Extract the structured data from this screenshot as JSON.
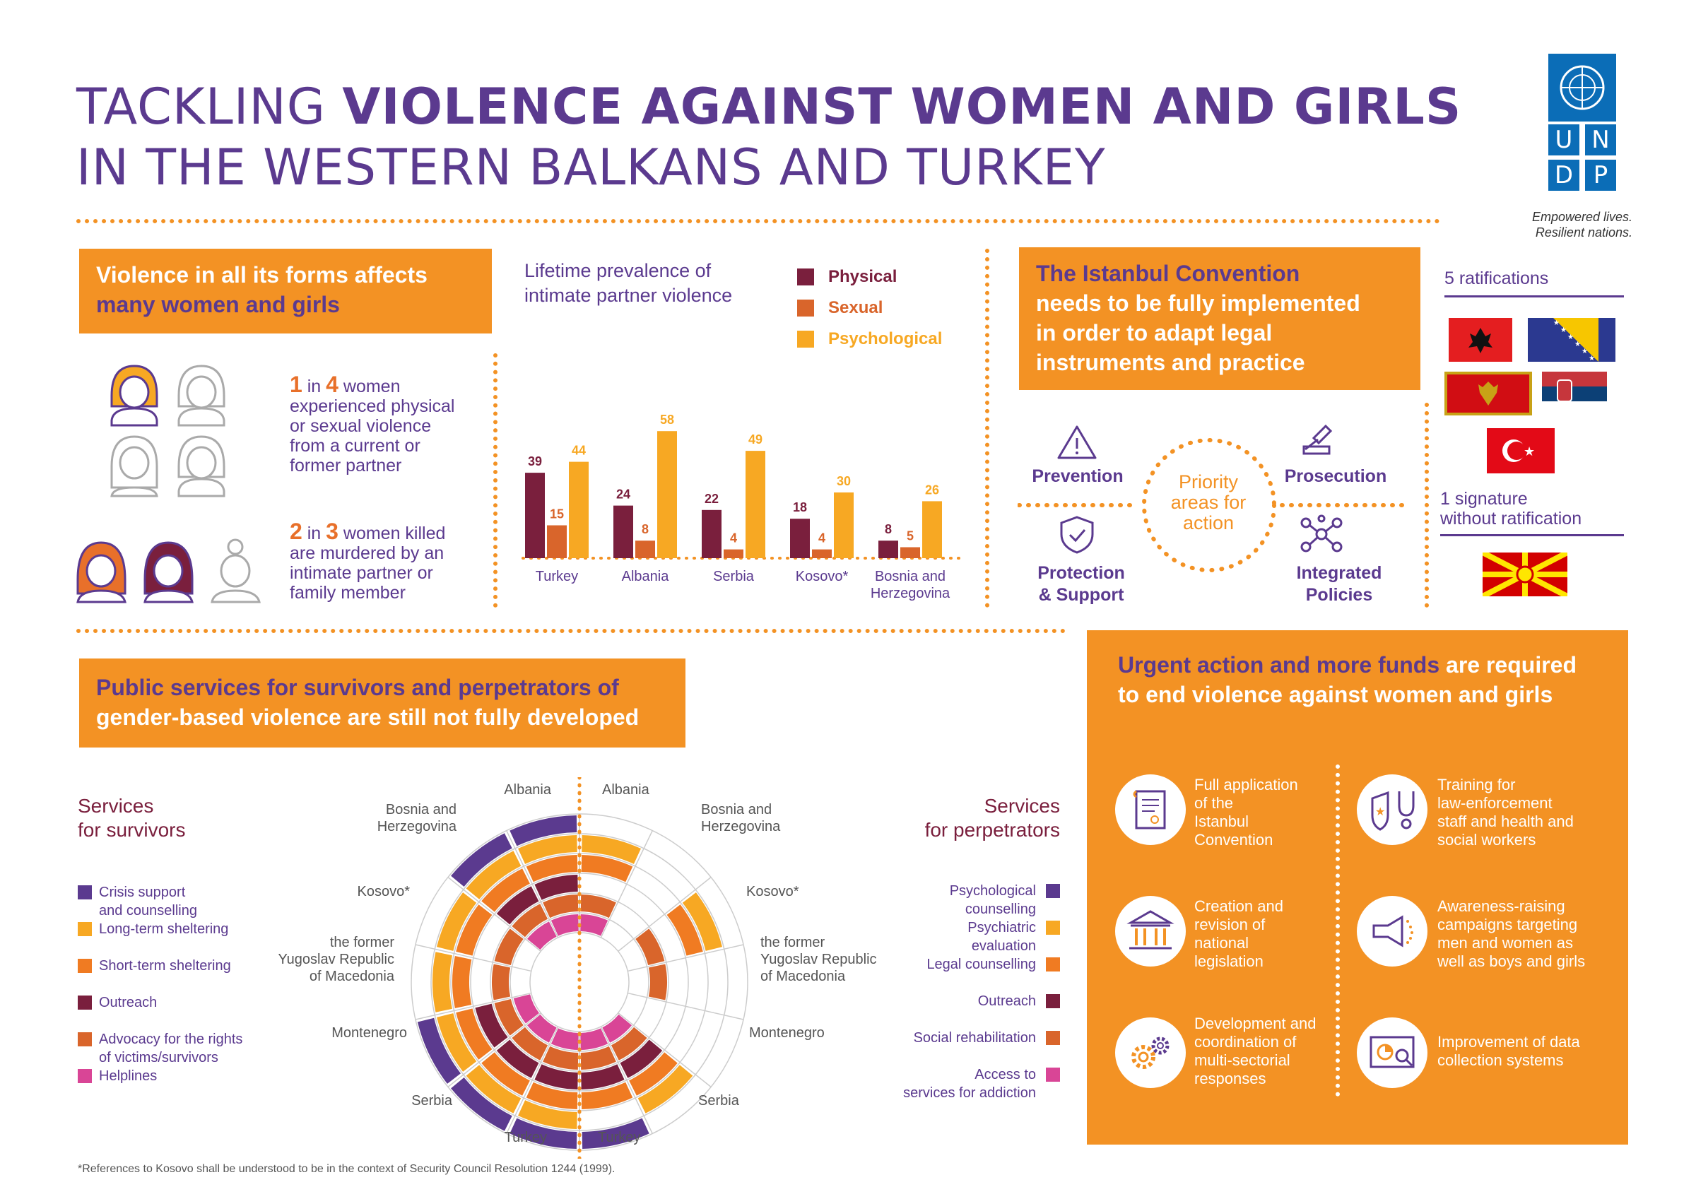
{
  "header": {
    "title_line1_light": "TACKLING ",
    "title_line1_bold": "VIOLENCE AGAINST WOMEN AND GIRLS",
    "title_line2": "IN THE WESTERN BALKANS AND TURKEY"
  },
  "logo": {
    "letters": [
      "U",
      "N",
      "D",
      "P"
    ],
    "tagline_line1": "Empowered lives.",
    "tagline_line2": "Resilient nations."
  },
  "violence_section": {
    "box_line1": "Violence in all its forms affects",
    "box_line2": "many women and girls",
    "stat1_num1": "1",
    "stat1_in": " in ",
    "stat1_num2": "4",
    "stat1_text1": " women",
    "stat1_rest": [
      "experienced physical",
      "or sexual violence",
      "from a current or",
      "former partner"
    ],
    "stat2_num1": "2",
    "stat2_in": " in ",
    "stat2_num2": "3",
    "stat2_text1": " women killed",
    "stat2_rest": [
      "are murdered by an",
      "intimate partner or",
      "family member"
    ]
  },
  "bar_chart_title_line1": "Lifetime prevalence of",
  "bar_chart_title_line2": "intimate partner violence",
  "chart_data": [
    {
      "type": "bar",
      "title": "Lifetime prevalence of intimate partner violence",
      "categories": [
        "Turkey",
        "Albania",
        "Serbia",
        "Kosovo*",
        "Bosnia and Herzegovina"
      ],
      "series": [
        {
          "name": "Physical",
          "color": "#7a1f3d",
          "values": [
            39,
            24,
            22,
            18,
            8
          ]
        },
        {
          "name": "Sexual",
          "color": "#d9652b",
          "values": [
            15,
            8,
            4,
            4,
            5
          ]
        },
        {
          "name": "Psychological",
          "color": "#f7a823",
          "values": [
            44,
            58,
            49,
            30,
            26
          ]
        }
      ],
      "legend": "top-right",
      "grid": false
    },
    {
      "type": "radial",
      "title": "Services for survivors",
      "categories": [
        "Albania",
        "Bosnia and Herzegovina",
        "Kosovo*",
        "the former Yugoslav Republic of Macedonia",
        "Montenegro",
        "Serbia",
        "Turkey"
      ],
      "rings": [
        "Crisis support and counselling",
        "Long-term sheltering",
        "Short-term sheltering",
        "Outreach",
        "Advocacy for the rights of victims/survivors",
        "Helplines"
      ],
      "available": [
        [
          true,
          true,
          true,
          true,
          true,
          true
        ],
        [
          true,
          true,
          true,
          true,
          true,
          true
        ],
        [
          false,
          true,
          true,
          false,
          true,
          false
        ],
        [
          false,
          true,
          true,
          false,
          true,
          false
        ],
        [
          true,
          true,
          true,
          true,
          true,
          true
        ],
        [
          true,
          true,
          true,
          true,
          true,
          true
        ],
        [
          true,
          true,
          true,
          true,
          true,
          true
        ]
      ]
    },
    {
      "type": "radial",
      "title": "Services for perpetrators",
      "categories": [
        "Albania",
        "Bosnia and Herzegovina",
        "Kosovo*",
        "the former Yugoslav Republic of Macedonia",
        "Montenegro",
        "Serbia",
        "Turkey"
      ],
      "rings": [
        "Psychological counselling",
        "Psychiatric evaluation",
        "Legal counselling",
        "Outreach",
        "Social rehabilitation",
        "Access to services for addiction"
      ],
      "available": [
        [
          false,
          true,
          true,
          false,
          true,
          true
        ],
        [
          false,
          false,
          false,
          false,
          false,
          false
        ],
        [
          false,
          true,
          true,
          false,
          true,
          false
        ],
        [
          false,
          false,
          false,
          false,
          true,
          false
        ],
        [
          false,
          false,
          false,
          false,
          false,
          false
        ],
        [
          false,
          true,
          true,
          true,
          true,
          true
        ],
        [
          true,
          false,
          true,
          true,
          true,
          true
        ]
      ]
    }
  ],
  "istanbul": {
    "box_lines": [
      "The Istanbul Convention",
      "needs to be fully implemented",
      "in order to adapt legal",
      "instruments and practice"
    ],
    "priority_lines": [
      "Priority",
      "areas for",
      "action"
    ],
    "prevention": "Prevention",
    "prosecution": "Prosecution",
    "protection_line1": "Protection",
    "protection_line2": "& Support",
    "integrated_line1": "Integrated",
    "integrated_line2": "Policies",
    "ratifications": "5 ratifications",
    "signature_line1": "1 signature",
    "signature_line2": "without ratification"
  },
  "public_services": {
    "box_line1": "Public services for survivors and perpetrators of",
    "box_line2": "gender-based violence are still not fully developed",
    "survivors_title_line1": "Services",
    "survivors_title_line2": "for survivors",
    "perpetrators_title_line1": "Services",
    "perpetrators_title_line2": "for perpetrators",
    "survivor_legend": [
      {
        "label": [
          "Crisis support",
          "and counselling"
        ],
        "color": "#5b3a8f"
      },
      {
        "label": [
          "Long-term sheltering"
        ],
        "color": "#f7a823"
      },
      {
        "label": [
          "Short-term sheltering"
        ],
        "color": "#f07b22"
      },
      {
        "label": [
          "Outreach"
        ],
        "color": "#7a1f3d"
      },
      {
        "label": [
          "Advocacy for the rights",
          "of victims/survivors"
        ],
        "color": "#d9652b"
      },
      {
        "label": [
          "Helplines"
        ],
        "color": "#d94596"
      }
    ],
    "perpetrator_legend": [
      {
        "label": [
          "Psychological",
          "counselling"
        ],
        "color": "#5b3a8f"
      },
      {
        "label": [
          "Psychiatric",
          "evaluation"
        ],
        "color": "#f7a823"
      },
      {
        "label": [
          "Legal counselling"
        ],
        "color": "#f07b22"
      },
      {
        "label": [
          "Outreach"
        ],
        "color": "#7a1f3d"
      },
      {
        "label": [
          "Social rehabilitation"
        ],
        "color": "#d9652b"
      },
      {
        "label": [
          "Access to",
          "services for addiction"
        ],
        "color": "#d94596"
      }
    ],
    "country_labels_left": {
      "albania": "Albania",
      "bih": [
        "Bosnia and",
        "Herzegovina"
      ],
      "kosovo": "Kosovo*",
      "fyrom": [
        "the former",
        "Yugoslav Republic",
        "of Macedonia"
      ],
      "montenegro": "Montenegro",
      "serbia": "Serbia",
      "turkey": "Turkey"
    },
    "country_labels_right": {
      "albania": "Albania",
      "bih": [
        "Bosnia and",
        "Herzegovina"
      ],
      "kosovo": "Kosovo*",
      "fyrom": [
        "the former",
        "Yugoslav Republic",
        "of Macedonia"
      ],
      "montenegro": "Montenegro",
      "serbia": "Serbia",
      "turkey": "Turkey"
    }
  },
  "urgent": {
    "title_bold_purple": "Urgent action and more funds",
    "title_rest1": " are required",
    "title_line2": "to end violence against women and girls",
    "items": [
      {
        "icon": "document-icon",
        "lines": [
          "Full application",
          "of the",
          "Istanbul",
          "Convention"
        ]
      },
      {
        "icon": "badge-stethoscope-icon",
        "lines": [
          "Training for",
          "law-enforcement",
          "staff and health and",
          "social workers"
        ]
      },
      {
        "icon": "government-building-icon",
        "lines": [
          "Creation and",
          "revision of",
          "national",
          "legislation"
        ]
      },
      {
        "icon": "megaphone-icon",
        "lines": [
          "Awareness-raising",
          "campaigns targeting",
          "men and women as",
          "well as boys and girls"
        ]
      },
      {
        "icon": "gears-icon",
        "lines": [
          "Development and",
          "coordination of",
          "multi-sectorial",
          "responses"
        ]
      },
      {
        "icon": "data-chart-icon",
        "lines": [
          "Improvement of data",
          "collection systems"
        ]
      }
    ]
  },
  "footnote": "*References to Kosovo shall be understood to be in the context of Security Council Resolution 1244 (1999)."
}
